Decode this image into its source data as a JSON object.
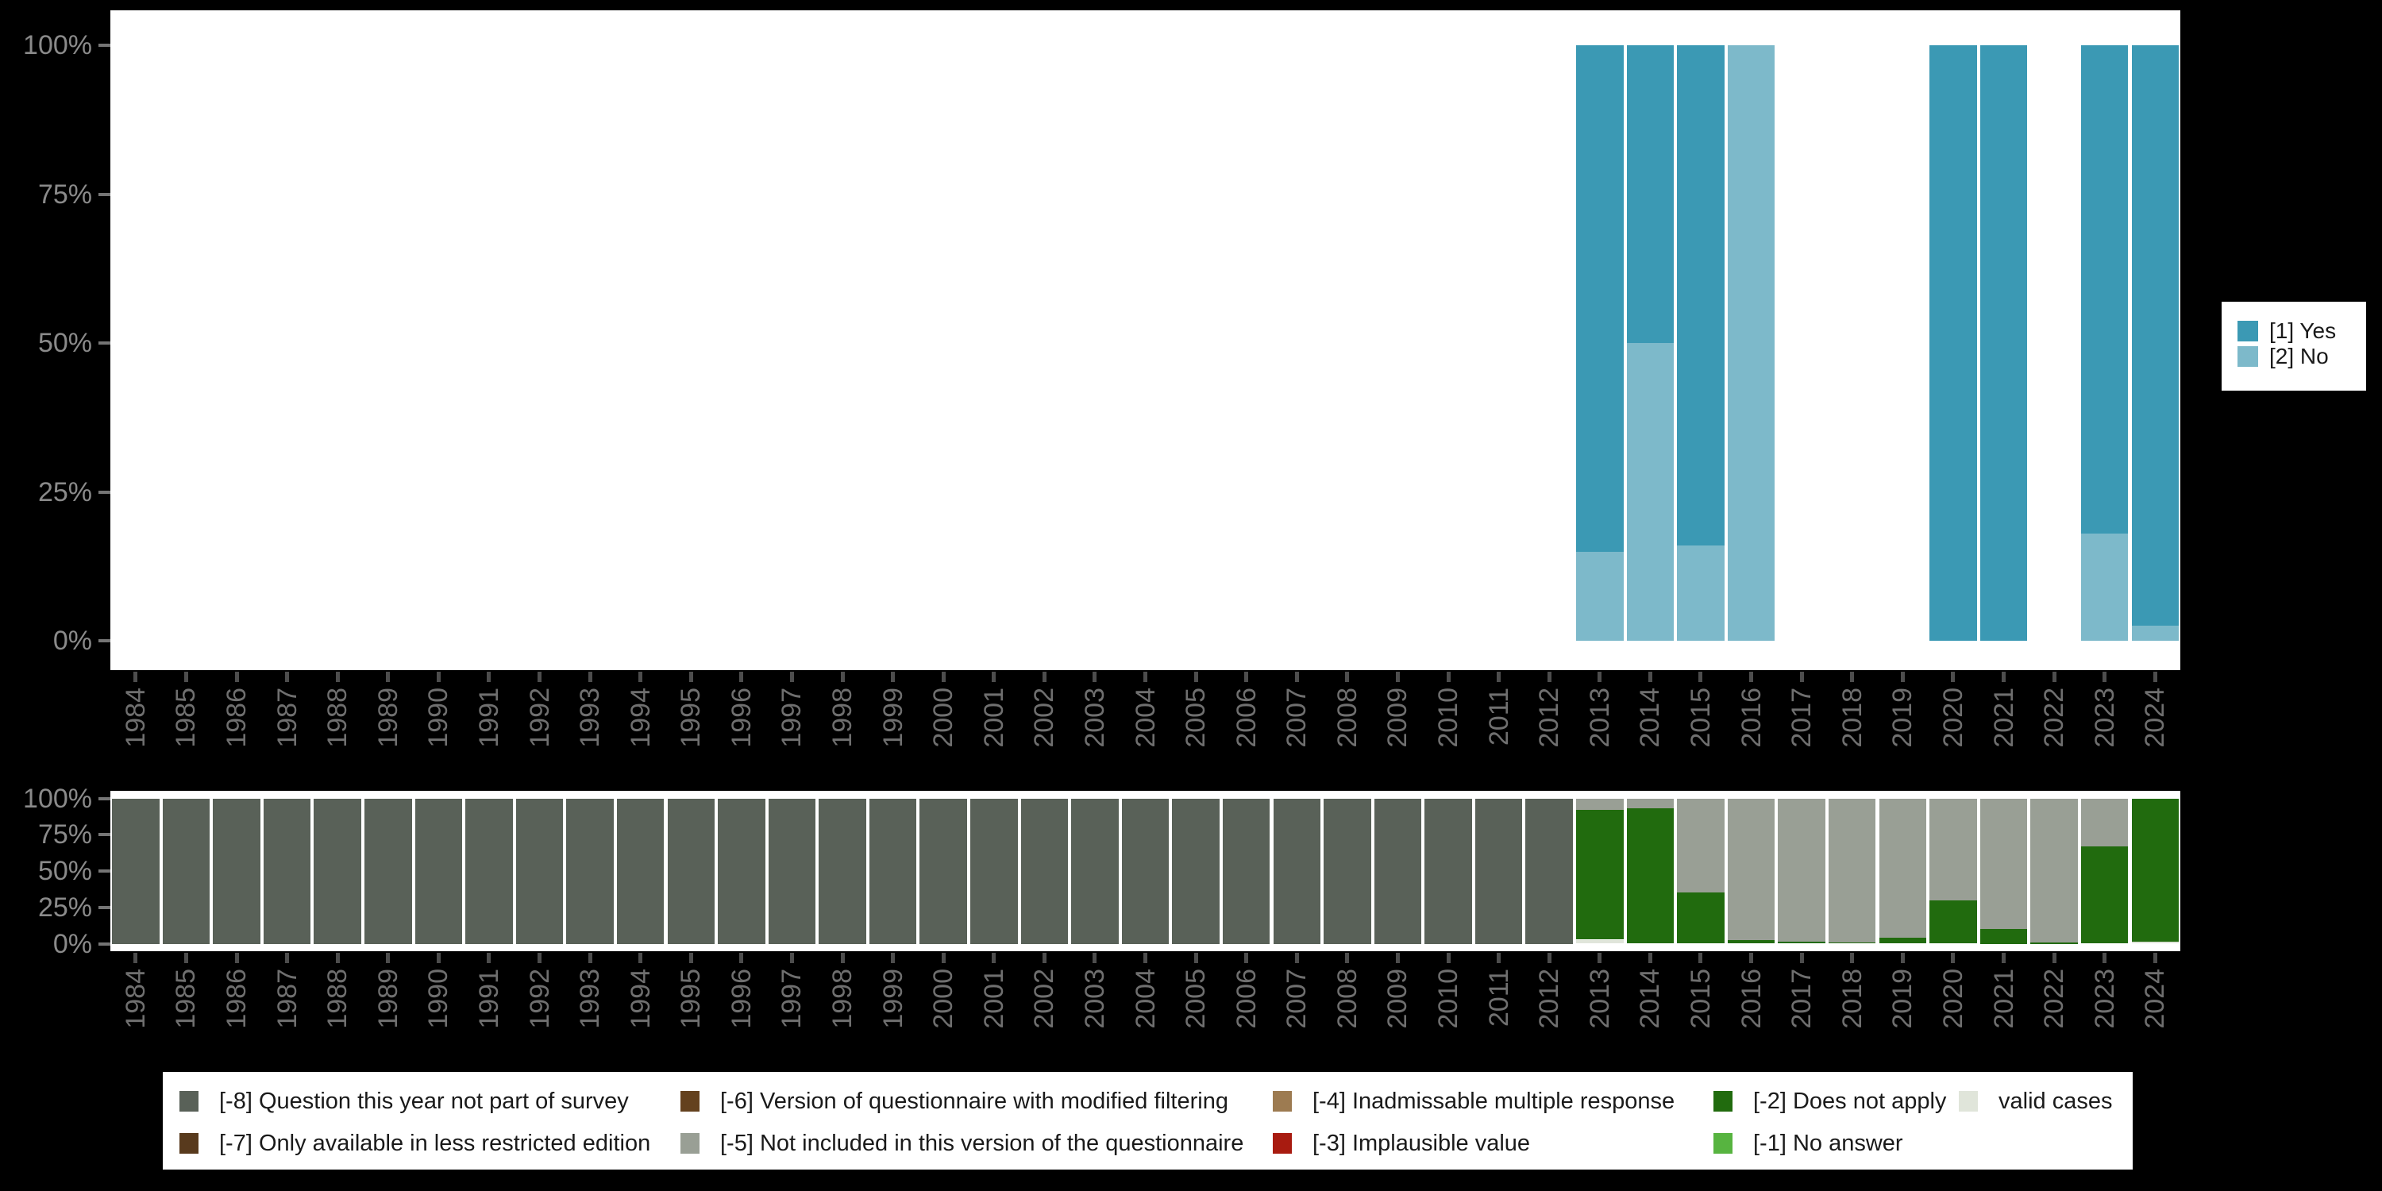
{
  "background": "#000000",
  "colors": {
    "panel": "#ffffff",
    "y_text": "#8a8a8a",
    "x_text": "#6f6f6f",
    "y_tick": "#757575",
    "x_tick": "#4d4d4d",
    "legend_text": "#1a1a1a",
    "legend_box": "#ffffff"
  },
  "years": [
    "1984",
    "1985",
    "1986",
    "1987",
    "1988",
    "1989",
    "1990",
    "1991",
    "1992",
    "1993",
    "1994",
    "1995",
    "1996",
    "1997",
    "1998",
    "1999",
    "2000",
    "2001",
    "2002",
    "2003",
    "2004",
    "2005",
    "2006",
    "2007",
    "2008",
    "2009",
    "2010",
    "2011",
    "2012",
    "2013",
    "2014",
    "2015",
    "2016",
    "2017",
    "2018",
    "2019",
    "2020",
    "2021",
    "2022",
    "2023",
    "2024"
  ],
  "y_axis": {
    "tick_labels": [
      "100%",
      "75%",
      "50%",
      "25%",
      "0%"
    ],
    "tick_values": [
      100,
      75,
      50,
      25,
      0
    ]
  },
  "chart_data": [
    {
      "id": "answers",
      "type": "bar",
      "stacked": true,
      "unit": "percent",
      "ylim": [
        0,
        100
      ],
      "grid": false,
      "legend_position": "right",
      "categories_ref": "years",
      "series": [
        {
          "name": "[1] Yes",
          "color": "#3b99b4",
          "values": [
            null,
            null,
            null,
            null,
            null,
            null,
            null,
            null,
            null,
            null,
            null,
            null,
            null,
            null,
            null,
            null,
            null,
            null,
            null,
            null,
            null,
            null,
            null,
            null,
            null,
            null,
            null,
            null,
            null,
            85,
            50,
            84,
            0,
            null,
            null,
            null,
            100,
            100,
            null,
            82,
            97.5
          ]
        },
        {
          "name": "[2] No",
          "color": "#7db9ca",
          "values": [
            null,
            null,
            null,
            null,
            null,
            null,
            null,
            null,
            null,
            null,
            null,
            null,
            null,
            null,
            null,
            null,
            null,
            null,
            null,
            null,
            null,
            null,
            null,
            null,
            null,
            null,
            null,
            null,
            null,
            15,
            50,
            16,
            100,
            null,
            null,
            null,
            0,
            0,
            null,
            18,
            2.5
          ]
        }
      ]
    },
    {
      "id": "missing-values",
      "type": "bar",
      "stacked": true,
      "unit": "percent",
      "ylim": [
        0,
        100
      ],
      "grid": false,
      "legend_position": "bottom",
      "categories_ref": "years",
      "series": [
        {
          "name": "[-8] Question this year not part of survey",
          "color": "#596158",
          "values": [
            100,
            100,
            100,
            100,
            100,
            100,
            100,
            100,
            100,
            100,
            100,
            100,
            100,
            100,
            100,
            100,
            100,
            100,
            100,
            100,
            100,
            100,
            100,
            100,
            100,
            100,
            100,
            100,
            100,
            0,
            0,
            0,
            0,
            0,
            0,
            0,
            0,
            0,
            0,
            0,
            0
          ]
        },
        {
          "name": "[-5] Not included in this version of the questionnaire",
          "color": "#999f95",
          "values": [
            0,
            0,
            0,
            0,
            0,
            0,
            0,
            0,
            0,
            0,
            0,
            0,
            0,
            0,
            0,
            0,
            0,
            0,
            0,
            0,
            0,
            0,
            0,
            0,
            0,
            0,
            0,
            0,
            0,
            8,
            7,
            64.8,
            97.5,
            98.5,
            99.3,
            96,
            70.4,
            89.9,
            99.2,
            32.9,
            0
          ]
        },
        {
          "name": "[-2] Does not apply",
          "color": "#216b0e",
          "values": [
            0,
            0,
            0,
            0,
            0,
            0,
            0,
            0,
            0,
            0,
            0,
            0,
            0,
            0,
            0,
            0,
            0,
            0,
            0,
            0,
            0,
            0,
            0,
            0,
            0,
            0,
            0,
            0,
            0,
            89.3,
            93,
            35.2,
            2.5,
            1.5,
            0.7,
            4,
            29.6,
            10.1,
            0.8,
            67.1,
            98.4
          ]
        },
        {
          "name": "valid cases",
          "color": "#e0e5da",
          "values": [
            0,
            0,
            0,
            0,
            0,
            0,
            0,
            0,
            0,
            0,
            0,
            0,
            0,
            0,
            0,
            0,
            0,
            0,
            0,
            0,
            0,
            0,
            0,
            0,
            0,
            0,
            0,
            0,
            0,
            2.7,
            0,
            0,
            0,
            0,
            0,
            0,
            0,
            0,
            0,
            0,
            1.6
          ]
        }
      ]
    }
  ],
  "right_legend": {
    "entries": [
      {
        "label": "[1] Yes",
        "color": "#3b99b4"
      },
      {
        "label": "[2] No",
        "color": "#7db9ca"
      }
    ]
  },
  "bottom_legend": {
    "entries": [
      {
        "row": 0,
        "col": 0,
        "label": "[-8] Question this year not part of survey",
        "color": "#596158"
      },
      {
        "row": 1,
        "col": 0,
        "label": "[-7] Only available in less restricted edition",
        "color": "#583a1d"
      },
      {
        "row": 0,
        "col": 1,
        "label": "[-6] Version of questionnaire with modified filtering",
        "color": "#64411e"
      },
      {
        "row": 1,
        "col": 1,
        "label": "[-5] Not included in this version of the questionnaire",
        "color": "#999f95"
      },
      {
        "row": 0,
        "col": 2,
        "label": "[-4] Inadmissable multiple response",
        "color": "#9d7b51"
      },
      {
        "row": 1,
        "col": 2,
        "label": "[-3] Implausible value",
        "color": "#a81b10"
      },
      {
        "row": 0,
        "col": 3,
        "label": "[-2] Does not apply",
        "color": "#216b0e"
      },
      {
        "row": 1,
        "col": 3,
        "label": "[-1] No answer",
        "color": "#57b440"
      },
      {
        "row": 0,
        "col": 4,
        "label": "valid cases",
        "color": "#e0e5da"
      }
    ]
  }
}
